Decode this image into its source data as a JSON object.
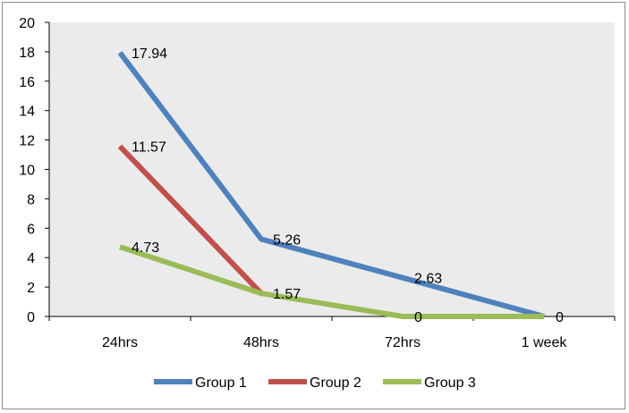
{
  "chart_data": {
    "type": "line",
    "categories": [
      "24hrs",
      "48hrs",
      "72hrs",
      "1 week"
    ],
    "ylim": [
      0,
      20
    ],
    "yticks": [
      0,
      2,
      4,
      6,
      8,
      10,
      12,
      14,
      16,
      18,
      20
    ],
    "grid": false,
    "legend_position": "bottom",
    "series": [
      {
        "name": "Group 1",
        "color": "#4f81bd",
        "values": [
          17.94,
          5.26,
          2.63,
          0
        ],
        "labels": [
          "17.94",
          "5.26",
          "2.63",
          "0"
        ]
      },
      {
        "name": "Group 2",
        "color": "#c0504d",
        "values": [
          11.57,
          1.57,
          null,
          null
        ],
        "labels": [
          "11.57",
          "",
          "",
          ""
        ]
      },
      {
        "name": "Group 3",
        "color": "#9bbb59",
        "values": [
          4.73,
          1.57,
          0,
          0
        ],
        "labels": [
          "4.73",
          "1.57",
          "0",
          ""
        ]
      }
    ]
  }
}
